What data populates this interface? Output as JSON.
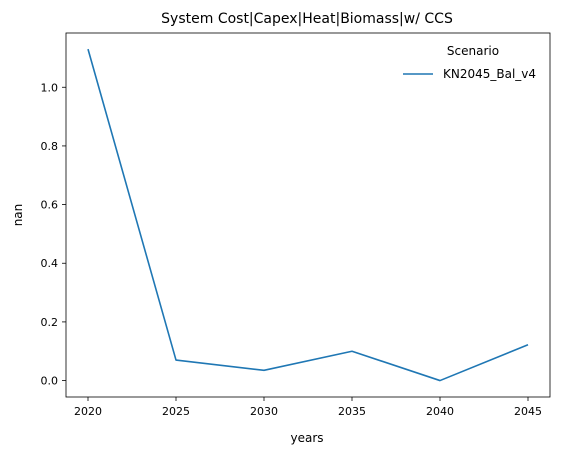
{
  "chart_data": {
    "type": "line",
    "title": "System Cost|Capex|Heat|Biomass|w/ CCS",
    "xlabel": "years",
    "ylabel": "nan",
    "x": [
      2020,
      2025,
      2030,
      2035,
      2040,
      2045
    ],
    "xticks": [
      "2020",
      "2025",
      "2030",
      "2035",
      "2040",
      "2045"
    ],
    "yticks": [
      "0.0",
      "0.2",
      "0.4",
      "0.6",
      "0.8",
      "1.0"
    ],
    "ylim": [
      -0.056,
      1.185
    ],
    "xlim": [
      2018.75,
      2046.25
    ],
    "grid": false,
    "legend": {
      "title": "Scenario",
      "placement": "top-right"
    },
    "series": [
      {
        "name": "KN2045_Bal_v4",
        "color": "#1f77b4",
        "values": [
          1.13,
          0.07,
          0.035,
          0.1,
          0.0,
          0.122
        ]
      }
    ]
  }
}
